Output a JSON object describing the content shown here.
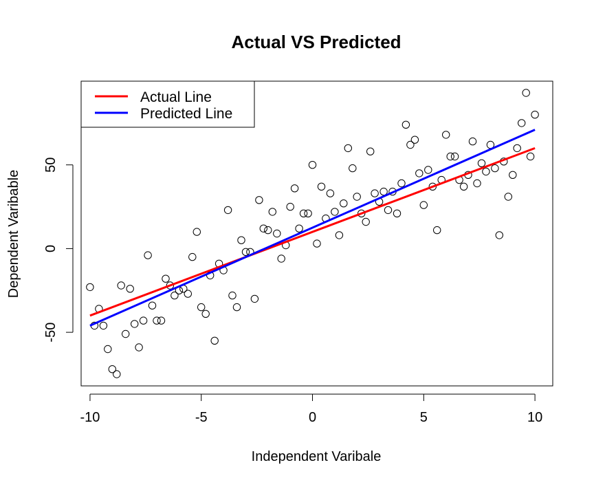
{
  "chart_data": {
    "type": "scatter",
    "title": "Actual VS Predicted",
    "xlabel": "Independent Varibale",
    "ylabel": "Dependent Varibable",
    "xlim": [
      -10.4,
      10.8
    ],
    "ylim": [
      -82,
      100
    ],
    "x_ticks": [
      -10,
      -5,
      0,
      5,
      10
    ],
    "x_tick_labels": [
      "-10",
      "-5",
      "0",
      "5",
      "10"
    ],
    "y_ticks": [
      -50,
      0,
      50
    ],
    "y_tick_labels": [
      "-50",
      "0",
      "50"
    ],
    "legend_position": "top-left",
    "legend": [
      {
        "label": "Actual Line",
        "color": "#ff0000"
      },
      {
        "label": "Predicted Line",
        "color": "#0000ff"
      }
    ],
    "points": [
      [
        -10.0,
        -23
      ],
      [
        -9.8,
        -46
      ],
      [
        -9.6,
        -36
      ],
      [
        -9.4,
        -46
      ],
      [
        -9.2,
        -60
      ],
      [
        -9.0,
        -72
      ],
      [
        -8.8,
        -75
      ],
      [
        -8.6,
        -22
      ],
      [
        -8.4,
        -51
      ],
      [
        -8.2,
        -24
      ],
      [
        -8.0,
        -45
      ],
      [
        -7.8,
        -59
      ],
      [
        -7.6,
        -43
      ],
      [
        -7.4,
        -4
      ],
      [
        -7.2,
        -34
      ],
      [
        -7.0,
        -43
      ],
      [
        -6.8,
        -43
      ],
      [
        -6.6,
        -18
      ],
      [
        -6.4,
        -22
      ],
      [
        -6.2,
        -28
      ],
      [
        -6.0,
        -25
      ],
      [
        -5.8,
        -24
      ],
      [
        -5.6,
        -27
      ],
      [
        -5.4,
        -5
      ],
      [
        -5.2,
        10
      ],
      [
        -5.0,
        -35
      ],
      [
        -4.8,
        -39
      ],
      [
        -4.6,
        -16
      ],
      [
        -4.4,
        -55
      ],
      [
        -4.2,
        -9
      ],
      [
        -4.0,
        -13
      ],
      [
        -3.8,
        23
      ],
      [
        -3.6,
        -28
      ],
      [
        -3.4,
        -35
      ],
      [
        -3.2,
        5
      ],
      [
        -3.0,
        -2
      ],
      [
        -2.8,
        -2
      ],
      [
        -2.6,
        -30
      ],
      [
        -2.4,
        29
      ],
      [
        -2.2,
        12
      ],
      [
        -2.0,
        11
      ],
      [
        -1.8,
        22
      ],
      [
        -1.6,
        9
      ],
      [
        -1.4,
        -6
      ],
      [
        -1.2,
        2
      ],
      [
        -1.0,
        25
      ],
      [
        -0.8,
        36
      ],
      [
        -0.6,
        12
      ],
      [
        -0.4,
        21
      ],
      [
        -0.2,
        21
      ],
      [
        0.0,
        50
      ],
      [
        0.2,
        3
      ],
      [
        0.4,
        37
      ],
      [
        0.6,
        18
      ],
      [
        0.8,
        33
      ],
      [
        1.0,
        22
      ],
      [
        1.2,
        8
      ],
      [
        1.4,
        27
      ],
      [
        1.6,
        60
      ],
      [
        1.8,
        48
      ],
      [
        2.0,
        31
      ],
      [
        2.2,
        21
      ],
      [
        2.4,
        16
      ],
      [
        2.6,
        58
      ],
      [
        2.8,
        33
      ],
      [
        3.0,
        28
      ],
      [
        3.2,
        34
      ],
      [
        3.4,
        23
      ],
      [
        3.6,
        34
      ],
      [
        3.8,
        21
      ],
      [
        4.0,
        39
      ],
      [
        4.2,
        74
      ],
      [
        4.4,
        62
      ],
      [
        4.6,
        65
      ],
      [
        4.8,
        45
      ],
      [
        5.0,
        26
      ],
      [
        5.2,
        47
      ],
      [
        5.4,
        37
      ],
      [
        5.6,
        11
      ],
      [
        5.8,
        41
      ],
      [
        6.0,
        68
      ],
      [
        6.2,
        55
      ],
      [
        6.4,
        55
      ],
      [
        6.6,
        41
      ],
      [
        6.8,
        37
      ],
      [
        7.0,
        44
      ],
      [
        7.2,
        64
      ],
      [
        7.4,
        39
      ],
      [
        7.6,
        51
      ],
      [
        7.8,
        46
      ],
      [
        8.0,
        62
      ],
      [
        8.2,
        48
      ],
      [
        8.4,
        8
      ],
      [
        8.6,
        52
      ],
      [
        8.8,
        31
      ],
      [
        9.0,
        44
      ],
      [
        9.2,
        60
      ],
      [
        9.4,
        75
      ],
      [
        9.6,
        93
      ],
      [
        9.8,
        55
      ],
      [
        10.0,
        80
      ]
    ],
    "series": [
      {
        "name": "Actual Line",
        "color": "#ff0000",
        "x": [
          -10,
          10
        ],
        "y": [
          -40,
          60
        ]
      },
      {
        "name": "Predicted Line",
        "color": "#0000ff",
        "x": [
          -10,
          10
        ],
        "y": [
          -46,
          71
        ]
      }
    ]
  }
}
